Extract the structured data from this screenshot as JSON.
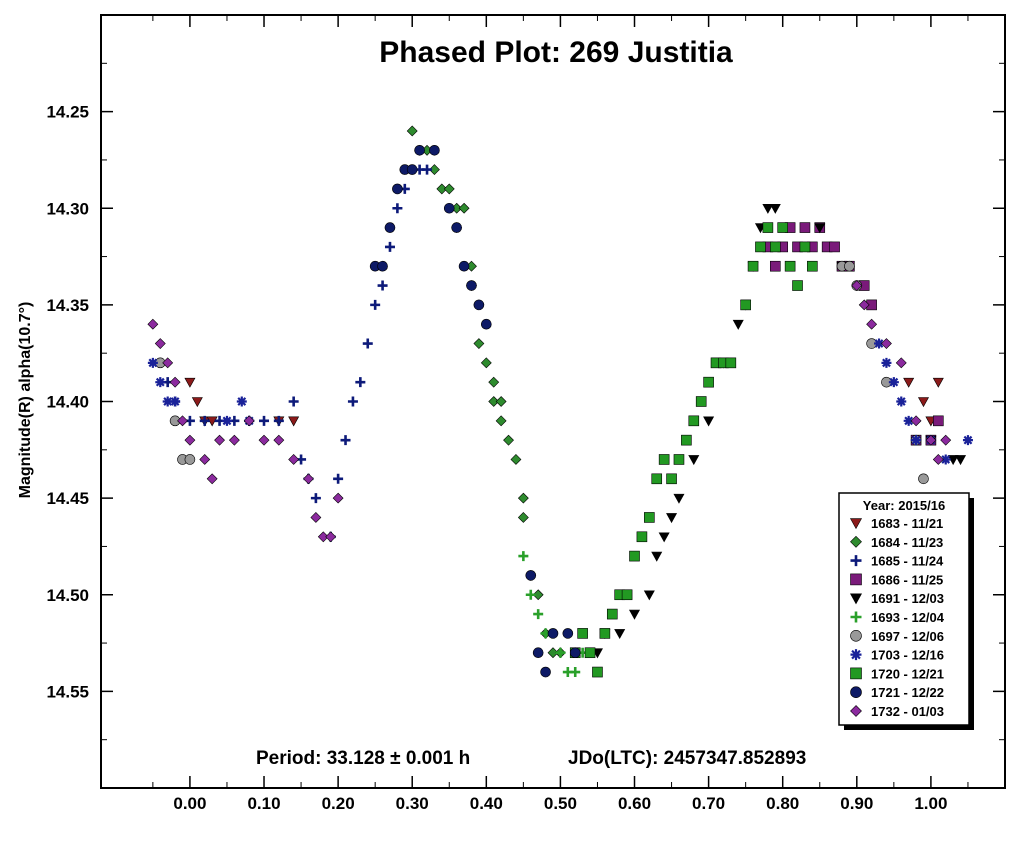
{
  "chart_data": {
    "type": "scatter",
    "title": "Phased Plot: 269 Justitia",
    "ylabel": "Magnitude(R) alpha(10.7°)",
    "xlabel": "",
    "xlim": [
      -0.12,
      1.1
    ],
    "ylim": [
      14.6,
      14.2
    ],
    "y_inverted": true,
    "x_ticks": [
      "0.00",
      "0.10",
      "0.20",
      "0.30",
      "0.40",
      "0.50",
      "0.60",
      "0.70",
      "0.80",
      "0.90",
      "1.00"
    ],
    "y_ticks": [
      "14.25",
      "14.30",
      "14.35",
      "14.40",
      "14.45",
      "14.50",
      "14.55"
    ],
    "footer": {
      "period": "Period: 33.128 ± 0.001 h",
      "epoch": "JDo(LTC): 2457347.852893"
    },
    "legend": {
      "title": "Year: 2015/16",
      "placement": "bottom-right"
    },
    "series": [
      {
        "name": "1683 - 11/21",
        "marker": "triangle-down",
        "color": "#8b1a1a",
        "points": [
          [
            0.0,
            14.39
          ],
          [
            0.01,
            14.4
          ],
          [
            0.02,
            14.41
          ],
          [
            0.03,
            14.41
          ],
          [
            0.12,
            14.41
          ],
          [
            0.14,
            14.41
          ],
          [
            0.97,
            14.39
          ],
          [
            0.99,
            14.4
          ],
          [
            1.0,
            14.41
          ],
          [
            1.01,
            14.39
          ]
        ]
      },
      {
        "name": "1684 - 11/23",
        "marker": "diamond",
        "color": "#2e8b2e",
        "points": [
          [
            0.3,
            14.26
          ],
          [
            0.31,
            14.27
          ],
          [
            0.32,
            14.27
          ],
          [
            0.33,
            14.28
          ],
          [
            0.34,
            14.29
          ],
          [
            0.35,
            14.29
          ],
          [
            0.36,
            14.3
          ],
          [
            0.36,
            14.31
          ],
          [
            0.37,
            14.3
          ],
          [
            0.38,
            14.33
          ],
          [
            0.38,
            14.34
          ],
          [
            0.39,
            14.35
          ],
          [
            0.39,
            14.37
          ],
          [
            0.4,
            14.38
          ],
          [
            0.41,
            14.39
          ],
          [
            0.41,
            14.4
          ],
          [
            0.42,
            14.4
          ],
          [
            0.42,
            14.41
          ],
          [
            0.43,
            14.42
          ],
          [
            0.44,
            14.43
          ],
          [
            0.45,
            14.45
          ],
          [
            0.45,
            14.46
          ],
          [
            0.46,
            14.49
          ],
          [
            0.47,
            14.5
          ],
          [
            0.48,
            14.52
          ],
          [
            0.49,
            14.53
          ],
          [
            0.5,
            14.53
          ]
        ]
      },
      {
        "name": "1685 - 11/24",
        "marker": "plus",
        "color": "#0d1a7a",
        "points": [
          [
            -0.03,
            14.39
          ],
          [
            -0.02,
            14.4
          ],
          [
            0.0,
            14.41
          ],
          [
            0.02,
            14.41
          ],
          [
            0.04,
            14.41
          ],
          [
            0.06,
            14.41
          ],
          [
            0.08,
            14.41
          ],
          [
            0.1,
            14.41
          ],
          [
            0.12,
            14.41
          ],
          [
            0.14,
            14.4
          ],
          [
            0.15,
            14.43
          ],
          [
            0.16,
            14.44
          ],
          [
            0.17,
            14.45
          ],
          [
            0.19,
            14.47
          ],
          [
            0.2,
            14.44
          ],
          [
            0.21,
            14.42
          ],
          [
            0.22,
            14.4
          ],
          [
            0.23,
            14.39
          ],
          [
            0.24,
            14.37
          ],
          [
            0.25,
            14.35
          ],
          [
            0.26,
            14.34
          ],
          [
            0.27,
            14.32
          ],
          [
            0.27,
            14.31
          ],
          [
            0.28,
            14.3
          ],
          [
            0.29,
            14.29
          ],
          [
            0.3,
            14.28
          ],
          [
            0.31,
            14.28
          ],
          [
            0.32,
            14.28
          ]
        ]
      },
      {
        "name": "1686 - 11/25",
        "marker": "square",
        "color": "#7a1a7a",
        "points": [
          [
            0.78,
            14.32
          ],
          [
            0.79,
            14.33
          ],
          [
            0.8,
            14.32
          ],
          [
            0.81,
            14.31
          ],
          [
            0.82,
            14.32
          ],
          [
            0.83,
            14.31
          ],
          [
            0.84,
            14.32
          ],
          [
            0.85,
            14.31
          ],
          [
            0.86,
            14.32
          ],
          [
            0.87,
            14.32
          ],
          [
            0.88,
            14.33
          ],
          [
            0.89,
            14.33
          ],
          [
            0.91,
            14.34
          ],
          [
            0.92,
            14.35
          ],
          [
            0.98,
            14.42
          ],
          [
            1.0,
            14.42
          ],
          [
            1.01,
            14.41
          ]
        ]
      },
      {
        "name": "1691 - 12/03",
        "marker": "triangle-down",
        "color": "#000000",
        "points": [
          [
            0.55,
            14.53
          ],
          [
            0.56,
            14.52
          ],
          [
            0.58,
            14.52
          ],
          [
            0.6,
            14.51
          ],
          [
            0.62,
            14.5
          ],
          [
            0.63,
            14.48
          ],
          [
            0.64,
            14.47
          ],
          [
            0.65,
            14.46
          ],
          [
            0.66,
            14.45
          ],
          [
            0.68,
            14.43
          ],
          [
            0.7,
            14.41
          ],
          [
            0.72,
            14.38
          ],
          [
            0.74,
            14.36
          ],
          [
            0.75,
            14.35
          ],
          [
            0.76,
            14.33
          ],
          [
            0.77,
            14.31
          ],
          [
            0.78,
            14.3
          ],
          [
            0.79,
            14.3
          ],
          [
            0.85,
            14.31
          ],
          [
            0.88,
            14.33
          ],
          [
            1.0,
            14.42
          ],
          [
            1.03,
            14.43
          ],
          [
            1.04,
            14.43
          ]
        ]
      },
      {
        "name": "1693 - 12/04",
        "marker": "plus",
        "color": "#2aa02a",
        "points": [
          [
            0.45,
            14.48
          ],
          [
            0.46,
            14.5
          ],
          [
            0.47,
            14.51
          ],
          [
            0.48,
            14.52
          ],
          [
            0.49,
            14.52
          ],
          [
            0.5,
            14.53
          ],
          [
            0.51,
            14.54
          ],
          [
            0.52,
            14.54
          ],
          [
            0.53,
            14.53
          ],
          [
            0.54,
            14.53
          ],
          [
            0.55,
            14.54
          ]
        ]
      },
      {
        "name": "1697 - 12/06",
        "marker": "circle",
        "color": "#999999",
        "points": [
          [
            -0.04,
            14.38
          ],
          [
            -0.02,
            14.41
          ],
          [
            -0.01,
            14.43
          ],
          [
            0.0,
            14.43
          ],
          [
            0.88,
            14.33
          ],
          [
            0.89,
            14.33
          ],
          [
            0.9,
            14.34
          ],
          [
            0.92,
            14.37
          ],
          [
            0.94,
            14.39
          ],
          [
            0.98,
            14.42
          ],
          [
            0.99,
            14.44
          ]
        ]
      },
      {
        "name": "1703 - 12/16",
        "marker": "asterisk",
        "color": "#1a2299",
        "points": [
          [
            -0.05,
            14.38
          ],
          [
            -0.04,
            14.39
          ],
          [
            -0.03,
            14.4
          ],
          [
            -0.02,
            14.4
          ],
          [
            0.05,
            14.41
          ],
          [
            0.07,
            14.4
          ],
          [
            0.08,
            14.41
          ],
          [
            0.93,
            14.37
          ],
          [
            0.94,
            14.38
          ],
          [
            0.95,
            14.39
          ],
          [
            0.96,
            14.4
          ],
          [
            0.97,
            14.41
          ],
          [
            0.98,
            14.42
          ],
          [
            1.0,
            14.42
          ],
          [
            1.02,
            14.43
          ],
          [
            1.05,
            14.42
          ]
        ]
      },
      {
        "name": "1720 - 12/21",
        "marker": "square",
        "color": "#229922",
        "points": [
          [
            0.52,
            14.53
          ],
          [
            0.53,
            14.52
          ],
          [
            0.54,
            14.53
          ],
          [
            0.55,
            14.54
          ],
          [
            0.56,
            14.52
          ],
          [
            0.57,
            14.51
          ],
          [
            0.58,
            14.5
          ],
          [
            0.59,
            14.5
          ],
          [
            0.6,
            14.48
          ],
          [
            0.61,
            14.47
          ],
          [
            0.62,
            14.46
          ],
          [
            0.63,
            14.44
          ],
          [
            0.64,
            14.43
          ],
          [
            0.65,
            14.44
          ],
          [
            0.66,
            14.43
          ],
          [
            0.67,
            14.42
          ],
          [
            0.68,
            14.41
          ],
          [
            0.69,
            14.4
          ],
          [
            0.7,
            14.39
          ],
          [
            0.71,
            14.38
          ],
          [
            0.72,
            14.38
          ],
          [
            0.73,
            14.38
          ],
          [
            0.75,
            14.35
          ],
          [
            0.76,
            14.33
          ],
          [
            0.77,
            14.32
          ],
          [
            0.78,
            14.31
          ],
          [
            0.79,
            14.32
          ],
          [
            0.8,
            14.31
          ],
          [
            0.81,
            14.33
          ],
          [
            0.82,
            14.34
          ],
          [
            0.83,
            14.32
          ],
          [
            0.84,
            14.33
          ]
        ]
      },
      {
        "name": "1721 - 12/22",
        "marker": "circle",
        "color": "#0d1a66",
        "points": [
          [
            0.25,
            14.33
          ],
          [
            0.26,
            14.33
          ],
          [
            0.27,
            14.31
          ],
          [
            0.28,
            14.29
          ],
          [
            0.29,
            14.28
          ],
          [
            0.3,
            14.28
          ],
          [
            0.31,
            14.27
          ],
          [
            0.33,
            14.27
          ],
          [
            0.35,
            14.3
          ],
          [
            0.36,
            14.31
          ],
          [
            0.37,
            14.33
          ],
          [
            0.38,
            14.34
          ],
          [
            0.39,
            14.35
          ],
          [
            0.4,
            14.36
          ],
          [
            0.46,
            14.49
          ],
          [
            0.47,
            14.53
          ],
          [
            0.48,
            14.54
          ],
          [
            0.49,
            14.52
          ],
          [
            0.51,
            14.52
          ],
          [
            0.52,
            14.53
          ]
        ]
      },
      {
        "name": "1732 - 01/03",
        "marker": "diamond",
        "color": "#8b2a9e",
        "points": [
          [
            -0.05,
            14.36
          ],
          [
            -0.04,
            14.37
          ],
          [
            -0.03,
            14.38
          ],
          [
            -0.02,
            14.39
          ],
          [
            -0.01,
            14.41
          ],
          [
            0.0,
            14.42
          ],
          [
            0.02,
            14.43
          ],
          [
            0.03,
            14.44
          ],
          [
            0.04,
            14.42
          ],
          [
            0.06,
            14.42
          ],
          [
            0.08,
            14.41
          ],
          [
            0.1,
            14.42
          ],
          [
            0.12,
            14.42
          ],
          [
            0.14,
            14.43
          ],
          [
            0.16,
            14.44
          ],
          [
            0.17,
            14.46
          ],
          [
            0.18,
            14.47
          ],
          [
            0.19,
            14.47
          ],
          [
            0.2,
            14.45
          ],
          [
            0.9,
            14.34
          ],
          [
            0.91,
            14.35
          ],
          [
            0.92,
            14.36
          ],
          [
            0.94,
            14.37
          ],
          [
            0.96,
            14.38
          ],
          [
            0.98,
            14.41
          ],
          [
            1.0,
            14.42
          ],
          [
            1.01,
            14.43
          ],
          [
            1.02,
            14.42
          ]
        ]
      }
    ]
  }
}
